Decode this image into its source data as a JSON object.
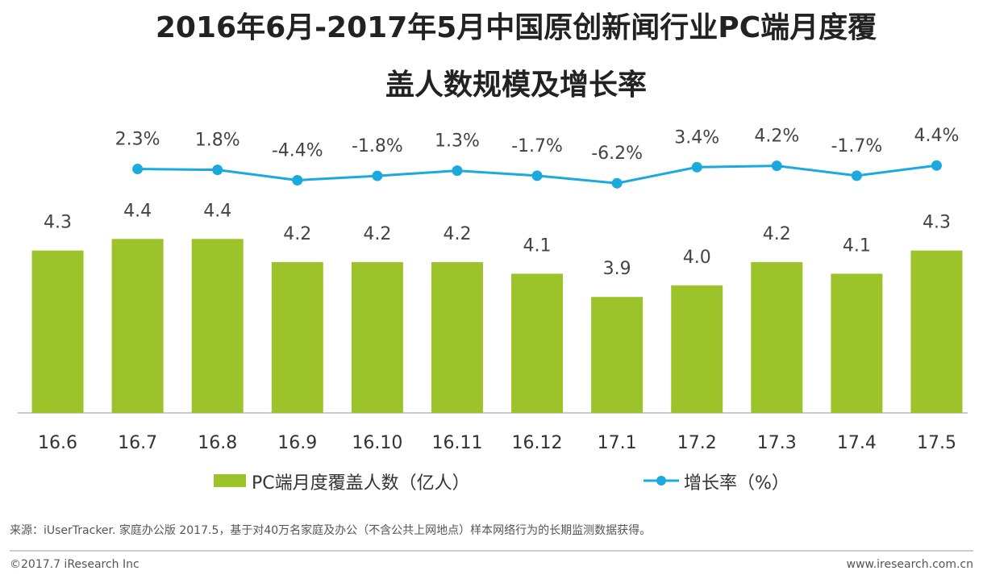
{
  "chart_data": {
    "type": "bar_line",
    "title": "2016年6月-2017年5月中国原创新闻行业PC端月度覆",
    "title_line2": "盖人数规模及增长率",
    "categories": [
      "16.6",
      "16.7",
      "16.8",
      "16.9",
      "16.10",
      "16.11",
      "16.12",
      "17.1",
      "17.2",
      "17.3",
      "17.4",
      "17.5"
    ],
    "series": [
      {
        "name": "PC端月度覆盖人数（亿人）",
        "color": "#9dc32b",
        "type": "bar",
        "values": [
          4.3,
          4.4,
          4.4,
          4.2,
          4.2,
          4.2,
          4.1,
          3.9,
          4.0,
          4.2,
          4.1,
          4.3
        ],
        "value_labels": [
          "4.3",
          "4.4",
          "4.4",
          "4.2",
          "4.2",
          "4.2",
          "4.1",
          "3.9",
          "4.0",
          "4.2",
          "4.1",
          "4.3"
        ]
      },
      {
        "name": "增长率（%）",
        "color": "#1ba9de",
        "type": "line",
        "axis": "y2",
        "values": [
          null,
          2.3,
          1.8,
          -4.4,
          -1.8,
          1.3,
          -1.7,
          -6.2,
          3.4,
          4.2,
          -1.7,
          4.4
        ],
        "value_labels": [
          null,
          "2.3%",
          "1.8%",
          "-4.4%",
          "-1.8%",
          "1.3%",
          "-1.7%",
          "-6.2%",
          "3.4%",
          "4.2%",
          "-1.7%",
          "4.4%"
        ]
      }
    ],
    "ylim": [
      2.9,
      5.0
    ],
    "y2lim": [
      -60,
      30
    ],
    "source": "来源：iUserTracker. 家庭办公版 2017.5，基于对40万名家庭及办公（不含公共上网地点）样本网络行为的长期监测数据获得。",
    "copyright": "©2017.7 iResearch Inc",
    "website": "www.iresearch.com.cn"
  }
}
